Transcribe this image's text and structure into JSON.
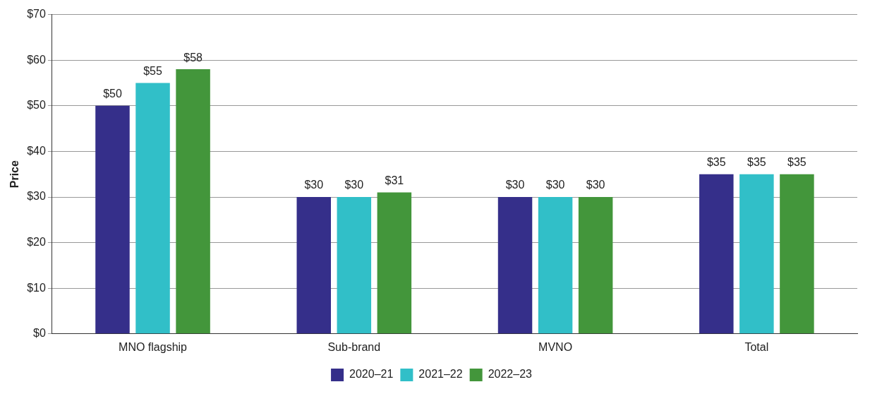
{
  "chart_data": {
    "type": "bar",
    "ylabel": "Price",
    "categories": [
      "MNO flagship",
      "Sub-brand",
      "MVNO",
      "Total"
    ],
    "series": [
      {
        "name": "2020–21",
        "color": "#352f8a",
        "values": [
          50,
          30,
          30,
          35
        ],
        "value_labels": [
          "$50",
          "$30",
          "$30",
          "$35"
        ]
      },
      {
        "name": "2021–22",
        "color": "#31bfc8",
        "values": [
          55,
          30,
          30,
          35
        ],
        "value_labels": [
          "$55",
          "$30",
          "$30",
          "$35"
        ]
      },
      {
        "name": "2022–23",
        "color": "#43963b",
        "values": [
          58,
          31,
          30,
          35
        ],
        "value_labels": [
          "$58",
          "$31",
          "$30",
          "$35"
        ]
      }
    ],
    "ylim": [
      0,
      70
    ],
    "yticks": [
      {
        "value": 0,
        "label": "$0"
      },
      {
        "value": 10,
        "label": "$10"
      },
      {
        "value": 20,
        "label": "$20"
      },
      {
        "value": 30,
        "label": "$30"
      },
      {
        "value": 40,
        "label": "$40"
      },
      {
        "value": 50,
        "label": "$50"
      },
      {
        "value": 60,
        "label": "$60"
      },
      {
        "value": 70,
        "label": "$70"
      }
    ],
    "grid": "y",
    "legend": "bottom"
  }
}
